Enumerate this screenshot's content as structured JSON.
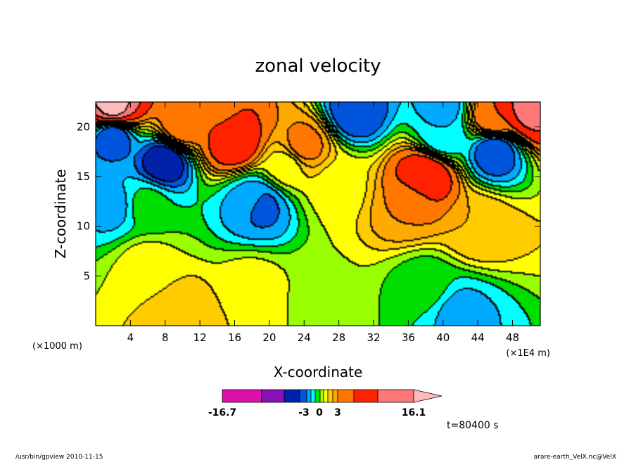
{
  "footer": {
    "left": "/usr/bin/gpview  2010-11-15",
    "right": "arare-earth_VelX.nc@VelX"
  },
  "chart_data": {
    "type": "heatmap",
    "title": "zonal velocity",
    "xlabel": "X-coordinate",
    "ylabel": "Z-coordinate",
    "x_unit_left": "(×1000 m)",
    "x_unit_right": "(×1E4 m)",
    "xlim": [
      0,
      51.2
    ],
    "ylim": [
      0,
      22.5
    ],
    "x_ticks": [
      4,
      8,
      12,
      16,
      20,
      24,
      28,
      32,
      36,
      40,
      44,
      48
    ],
    "y_ticks": [
      5,
      10,
      15,
      20
    ],
    "time_label": "t=80400 s",
    "colorbar": {
      "tick_labels": [
        "-16.7",
        "-3",
        "0",
        "3",
        "16.1"
      ],
      "colors": [
        "#dd11aa",
        "#8811bb",
        "#0022aa",
        "#0055dd",
        "#00aaff",
        "#00ffff",
        "#00dd00",
        "#99ff00",
        "#ffff00",
        "#ffcc00",
        "#ffaa00",
        "#ff7700",
        "#ff2200",
        "#ff7777",
        "#ffbbbb"
      ]
    },
    "features": [
      {
        "x": 6,
        "z": 6,
        "value": 1.5
      },
      {
        "x": 18,
        "z": 4,
        "value": 1.5
      },
      {
        "x": 10,
        "z": 1,
        "value": 3.0
      },
      {
        "x": 26,
        "z": 3,
        "value": 0.8
      },
      {
        "x": 38,
        "z": 4,
        "value": -0.6
      },
      {
        "x": 42,
        "z": 1.2,
        "value": -2.4
      },
      {
        "x": 6,
        "z": 12,
        "value": -0.6
      },
      {
        "x": 2,
        "z": 12,
        "value": -2.4
      },
      {
        "x": 18,
        "z": 12.5,
        "value": -2.4
      },
      {
        "x": 19,
        "z": 12,
        "value": -3.5
      },
      {
        "x": 38,
        "z": 15,
        "value": 8.5
      },
      {
        "x": 36,
        "z": 12,
        "value": 4.0
      },
      {
        "x": 44,
        "z": 10,
        "value": 3.0
      },
      {
        "x": 22,
        "z": 16,
        "value": 1.5
      },
      {
        "x": 28,
        "z": 14,
        "value": 1.5
      },
      {
        "x": 8,
        "z": 16.5,
        "value": -5.0
      },
      {
        "x": 2,
        "z": 19,
        "value": -4.0
      },
      {
        "x": 10,
        "z": 20,
        "value": 5.0
      },
      {
        "x": 16,
        "z": 18.5,
        "value": 8.0
      },
      {
        "x": 24,
        "z": 18,
        "value": 4.5
      },
      {
        "x": 2,
        "z": 22,
        "value": 14.0
      },
      {
        "x": 14,
        "z": 22,
        "value": 5.5
      },
      {
        "x": 30,
        "z": 21.5,
        "value": -4.0
      },
      {
        "x": 40,
        "z": 22,
        "value": -2.5
      },
      {
        "x": 46,
        "z": 21,
        "value": 6.0
      },
      {
        "x": 50,
        "z": 22,
        "value": 12.0
      },
      {
        "x": 40,
        "z": 19,
        "value": -2.0
      },
      {
        "x": 46,
        "z": 17.5,
        "value": -4.0
      }
    ]
  }
}
